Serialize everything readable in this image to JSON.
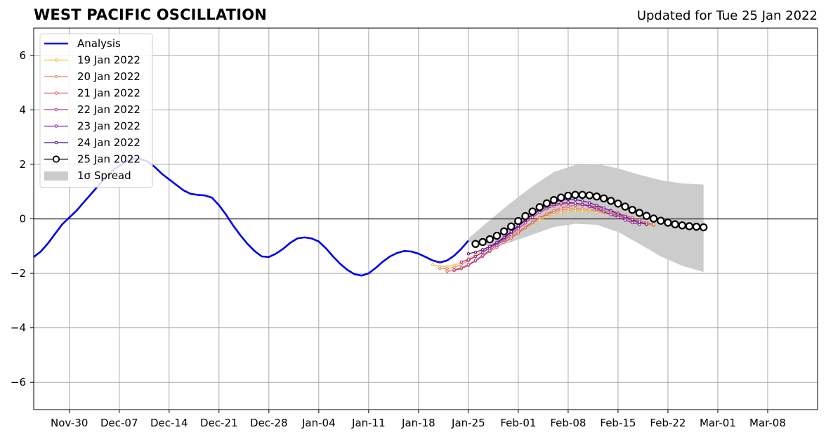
{
  "header": {
    "title": "WEST PACIFIC OSCILLATION",
    "updated": "Updated for Tue 25 Jan 2022"
  },
  "chart_data": {
    "type": "line",
    "title": "WEST PACIFIC OSCILLATION",
    "subtitle": "Updated for Tue 25 Jan 2022",
    "xlabel": "",
    "ylabel": "",
    "x_axis": {
      "start_date": "2021-11-25",
      "end_date": "2022-03-15",
      "tick_labels": [
        "Nov-30",
        "Dec-07",
        "Dec-14",
        "Dec-21",
        "Dec-28",
        "Jan-04",
        "Jan-11",
        "Jan-18",
        "Jan-25",
        "Feb-01",
        "Feb-08",
        "Feb-15",
        "Feb-22",
        "Mar-01",
        "Mar-08"
      ],
      "tick_dates": [
        "2021-11-30",
        "2021-12-07",
        "2021-12-14",
        "2021-12-21",
        "2021-12-28",
        "2022-01-04",
        "2022-01-11",
        "2022-01-18",
        "2022-01-25",
        "2022-02-01",
        "2022-02-08",
        "2022-02-15",
        "2022-02-22",
        "2022-03-01",
        "2022-03-08"
      ]
    },
    "ylim": [
      -7,
      7
    ],
    "yticks": [
      -6,
      -4,
      -2,
      0,
      2,
      4,
      6
    ],
    "ytick_labels": [
      "−6",
      "−4",
      "−2",
      "0",
      "2",
      "4",
      "6"
    ],
    "grid": true,
    "zero_line": true,
    "legend_position": "upper-left",
    "analysis": {
      "name": "Analysis",
      "color": "#0000ee",
      "points": [
        {
          "date": "2021-11-25",
          "value": -1.4
        },
        {
          "date": "2021-11-26",
          "value": -1.2
        },
        {
          "date": "2021-11-27",
          "value": -0.9
        },
        {
          "date": "2021-11-28",
          "value": -0.55
        },
        {
          "date": "2021-11-29",
          "value": -0.2
        },
        {
          "date": "2021-11-30",
          "value": 0.05
        },
        {
          "date": "2021-12-01",
          "value": 0.3
        },
        {
          "date": "2021-12-02",
          "value": 0.6
        },
        {
          "date": "2021-12-03",
          "value": 0.9
        },
        {
          "date": "2021-12-04",
          "value": 1.2
        },
        {
          "date": "2021-12-05",
          "value": 1.5
        },
        {
          "date": "2021-12-06",
          "value": 1.75
        },
        {
          "date": "2021-12-07",
          "value": 1.95
        },
        {
          "date": "2021-12-08",
          "value": 2.1
        },
        {
          "date": "2021-12-09",
          "value": 2.2
        },
        {
          "date": "2021-12-10",
          "value": 2.2
        },
        {
          "date": "2021-12-11",
          "value": 2.1
        },
        {
          "date": "2021-12-12",
          "value": 1.9
        },
        {
          "date": "2021-12-13",
          "value": 1.65
        },
        {
          "date": "2021-12-14",
          "value": 1.45
        },
        {
          "date": "2021-12-15",
          "value": 1.25
        },
        {
          "date": "2021-12-16",
          "value": 1.05
        },
        {
          "date": "2021-12-17",
          "value": 0.92
        },
        {
          "date": "2021-12-18",
          "value": 0.88
        },
        {
          "date": "2021-12-19",
          "value": 0.86
        },
        {
          "date": "2021-12-20",
          "value": 0.78
        },
        {
          "date": "2021-12-21",
          "value": 0.5
        },
        {
          "date": "2021-12-22",
          "value": 0.15
        },
        {
          "date": "2021-12-23",
          "value": -0.25
        },
        {
          "date": "2021-12-24",
          "value": -0.6
        },
        {
          "date": "2021-12-25",
          "value": -0.92
        },
        {
          "date": "2021-12-26",
          "value": -1.18
        },
        {
          "date": "2021-12-27",
          "value": -1.38
        },
        {
          "date": "2021-12-28",
          "value": -1.4
        },
        {
          "date": "2021-12-29",
          "value": -1.28
        },
        {
          "date": "2021-12-30",
          "value": -1.1
        },
        {
          "date": "2021-12-31",
          "value": -0.88
        },
        {
          "date": "2022-01-01",
          "value": -0.72
        },
        {
          "date": "2022-01-02",
          "value": -0.68
        },
        {
          "date": "2022-01-03",
          "value": -0.72
        },
        {
          "date": "2022-01-04",
          "value": -0.83
        },
        {
          "date": "2022-01-05",
          "value": -1.08
        },
        {
          "date": "2022-01-06",
          "value": -1.38
        },
        {
          "date": "2022-01-07",
          "value": -1.65
        },
        {
          "date": "2022-01-08",
          "value": -1.87
        },
        {
          "date": "2022-01-09",
          "value": -2.03
        },
        {
          "date": "2022-01-10",
          "value": -2.08
        },
        {
          "date": "2022-01-11",
          "value": -2.0
        },
        {
          "date": "2022-01-12",
          "value": -1.8
        },
        {
          "date": "2022-01-13",
          "value": -1.57
        },
        {
          "date": "2022-01-14",
          "value": -1.38
        },
        {
          "date": "2022-01-15",
          "value": -1.25
        },
        {
          "date": "2022-01-16",
          "value": -1.18
        },
        {
          "date": "2022-01-17",
          "value": -1.2
        },
        {
          "date": "2022-01-18",
          "value": -1.28
        },
        {
          "date": "2022-01-19",
          "value": -1.4
        },
        {
          "date": "2022-01-20",
          "value": -1.53
        },
        {
          "date": "2022-01-21",
          "value": -1.6
        },
        {
          "date": "2022-01-22",
          "value": -1.53
        },
        {
          "date": "2022-01-23",
          "value": -1.35
        },
        {
          "date": "2022-01-24",
          "value": -1.1
        },
        {
          "date": "2022-01-25",
          "value": -0.8
        }
      ]
    },
    "series": [
      {
        "name": "19 Jan 2022",
        "color": "#f5b933",
        "start_date": "2022-01-20",
        "values": [
          -1.68,
          -1.74,
          -1.75,
          -1.7,
          -1.6,
          -1.46,
          -1.31,
          -1.17,
          -1.04,
          -0.91,
          -0.78,
          -0.64,
          -0.48,
          -0.32,
          -0.17,
          -0.04,
          0.07,
          0.16,
          0.23,
          0.28,
          0.3,
          0.3,
          0.28,
          0.25,
          0.21,
          0.16,
          0.1,
          0.03,
          -0.04,
          -0.11,
          -0.17,
          -0.22
        ]
      },
      {
        "name": "20 Jan 2022",
        "color": "#f0844a",
        "start_date": "2022-01-21",
        "values": [
          -1.82,
          -1.83,
          -1.78,
          -1.68,
          -1.54,
          -1.38,
          -1.22,
          -1.07,
          -0.93,
          -0.79,
          -0.64,
          -0.47,
          -0.29,
          -0.12,
          0.03,
          0.15,
          0.25,
          0.32,
          0.36,
          0.38,
          0.37,
          0.34,
          0.3,
          0.25,
          0.18,
          0.11,
          0.03,
          -0.05,
          -0.12,
          -0.19,
          -0.24
        ]
      },
      {
        "name": "21 Jan 2022",
        "color": "#dd5a68",
        "start_date": "2022-01-22",
        "values": [
          -1.92,
          -1.9,
          -1.83,
          -1.71,
          -1.55,
          -1.38,
          -1.2,
          -1.04,
          -0.87,
          -0.7,
          -0.52,
          -0.33,
          -0.14,
          0.04,
          0.18,
          0.3,
          0.4,
          0.46,
          0.5,
          0.51,
          0.49,
          0.45,
          0.39,
          0.31,
          0.22,
          0.13,
          0.04,
          -0.05,
          -0.13,
          -0.2
        ]
      },
      {
        "name": "22 Jan 2022",
        "color": "#bb3a84",
        "start_date": "2022-01-23",
        "values": [
          -1.87,
          -1.8,
          -1.68,
          -1.52,
          -1.34,
          -1.15,
          -0.96,
          -0.77,
          -0.57,
          -0.36,
          -0.15,
          0.06,
          0.23,
          0.37,
          0.47,
          0.54,
          0.57,
          0.57,
          0.54,
          0.49,
          0.41,
          0.32,
          0.22,
          0.12,
          0.02,
          -0.07,
          -0.15,
          -0.21
        ]
      },
      {
        "name": "23 Jan 2022",
        "color": "#8a1aa6",
        "start_date": "2022-01-24",
        "values": [
          -1.58,
          -1.5,
          -1.38,
          -1.23,
          -1.07,
          -0.9,
          -0.71,
          -0.5,
          -0.28,
          -0.06,
          0.14,
          0.31,
          0.44,
          0.53,
          0.58,
          0.6,
          0.58,
          0.53,
          0.45,
          0.36,
          0.26,
          0.15,
          0.05,
          -0.05,
          -0.14,
          -0.21
        ]
      },
      {
        "name": "24 Jan 2022",
        "color": "#4a0a8a",
        "start_date": "2022-01-25",
        "values": [
          -1.28,
          -1.22,
          -1.13,
          -1.01,
          -0.86,
          -0.68,
          -0.47,
          -0.25,
          -0.03,
          0.17,
          0.35,
          0.5,
          0.61,
          0.68,
          0.71,
          0.7,
          0.66,
          0.59,
          0.5,
          0.4,
          0.29,
          0.18,
          0.08,
          -0.02,
          -0.11,
          -0.19
        ]
      },
      {
        "name": "25 Jan 2022",
        "color": "#000000",
        "start_date": "2022-01-26",
        "values": [
          -0.92,
          -0.85,
          -0.75,
          -0.62,
          -0.46,
          -0.28,
          -0.08,
          0.1,
          0.27,
          0.43,
          0.57,
          0.69,
          0.78,
          0.85,
          0.88,
          0.88,
          0.86,
          0.82,
          0.75,
          0.66,
          0.56,
          0.45,
          0.33,
          0.22,
          0.11,
          0.01,
          -0.07,
          -0.14,
          -0.2,
          -0.24,
          -0.27,
          -0.29,
          -0.31
        ]
      }
    ],
    "spread": {
      "name": "1σ Spread",
      "color": "#cccccc",
      "dates": [
        "2022-01-25",
        "2022-01-28",
        "2022-01-31",
        "2022-02-03",
        "2022-02-06",
        "2022-02-09",
        "2022-02-12",
        "2022-02-15",
        "2022-02-18",
        "2022-02-21",
        "2022-02-24",
        "2022-02-27"
      ],
      "upper": [
        -0.72,
        -0.05,
        0.6,
        1.2,
        1.72,
        1.98,
        2.02,
        1.85,
        1.62,
        1.42,
        1.3,
        1.26
      ],
      "lower": [
        -0.85,
        -1.0,
        -0.85,
        -0.58,
        -0.3,
        -0.18,
        -0.22,
        -0.48,
        -0.92,
        -1.38,
        -1.72,
        -1.95
      ]
    }
  }
}
